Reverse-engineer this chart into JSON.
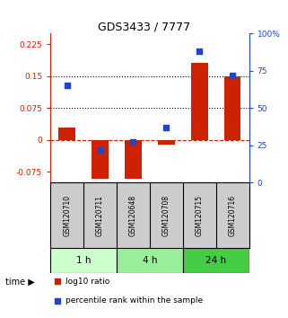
{
  "title": "GDS3433 / 7777",
  "samples": [
    "GSM120710",
    "GSM120711",
    "GSM120648",
    "GSM120708",
    "GSM120715",
    "GSM120716"
  ],
  "log10_ratio": [
    0.03,
    -0.09,
    -0.09,
    -0.012,
    0.18,
    0.15
  ],
  "percentile_rank": [
    65,
    22,
    27,
    37,
    88,
    72
  ],
  "groups": [
    {
      "label": "1 h",
      "indices": [
        0,
        1
      ],
      "color": "#ccffcc"
    },
    {
      "label": "4 h",
      "indices": [
        2,
        3
      ],
      "color": "#99ee99"
    },
    {
      "label": "24 h",
      "indices": [
        4,
        5
      ],
      "color": "#44cc44"
    }
  ],
  "ylim_left": [
    -0.1,
    0.25
  ],
  "ylim_right": [
    0,
    100
  ],
  "yticks_left": [
    -0.075,
    0,
    0.075,
    0.15,
    0.225
  ],
  "yticks_right": [
    0,
    25,
    50,
    75,
    100
  ],
  "ytick_labels_left": [
    "-0.075",
    "0",
    "0.075",
    "0.15",
    "0.225"
  ],
  "ytick_labels_right": [
    "0",
    "25",
    "50",
    "75",
    "100%"
  ],
  "hlines": [
    0.075,
    0.15
  ],
  "bar_color": "#cc2200",
  "dot_color": "#2244cc",
  "bar_width": 0.5,
  "dot_size": 22,
  "background_color": "#ffffff",
  "plot_bg_color": "#ffffff",
  "group_header_bg": "#cccccc",
  "left_axis_color": "#cc2200",
  "right_axis_color": "#2244cc",
  "title_fontsize": 9,
  "tick_fontsize": 6.5,
  "sample_fontsize": 5.5,
  "group_fontsize": 7.5,
  "legend_fontsize": 6.5
}
